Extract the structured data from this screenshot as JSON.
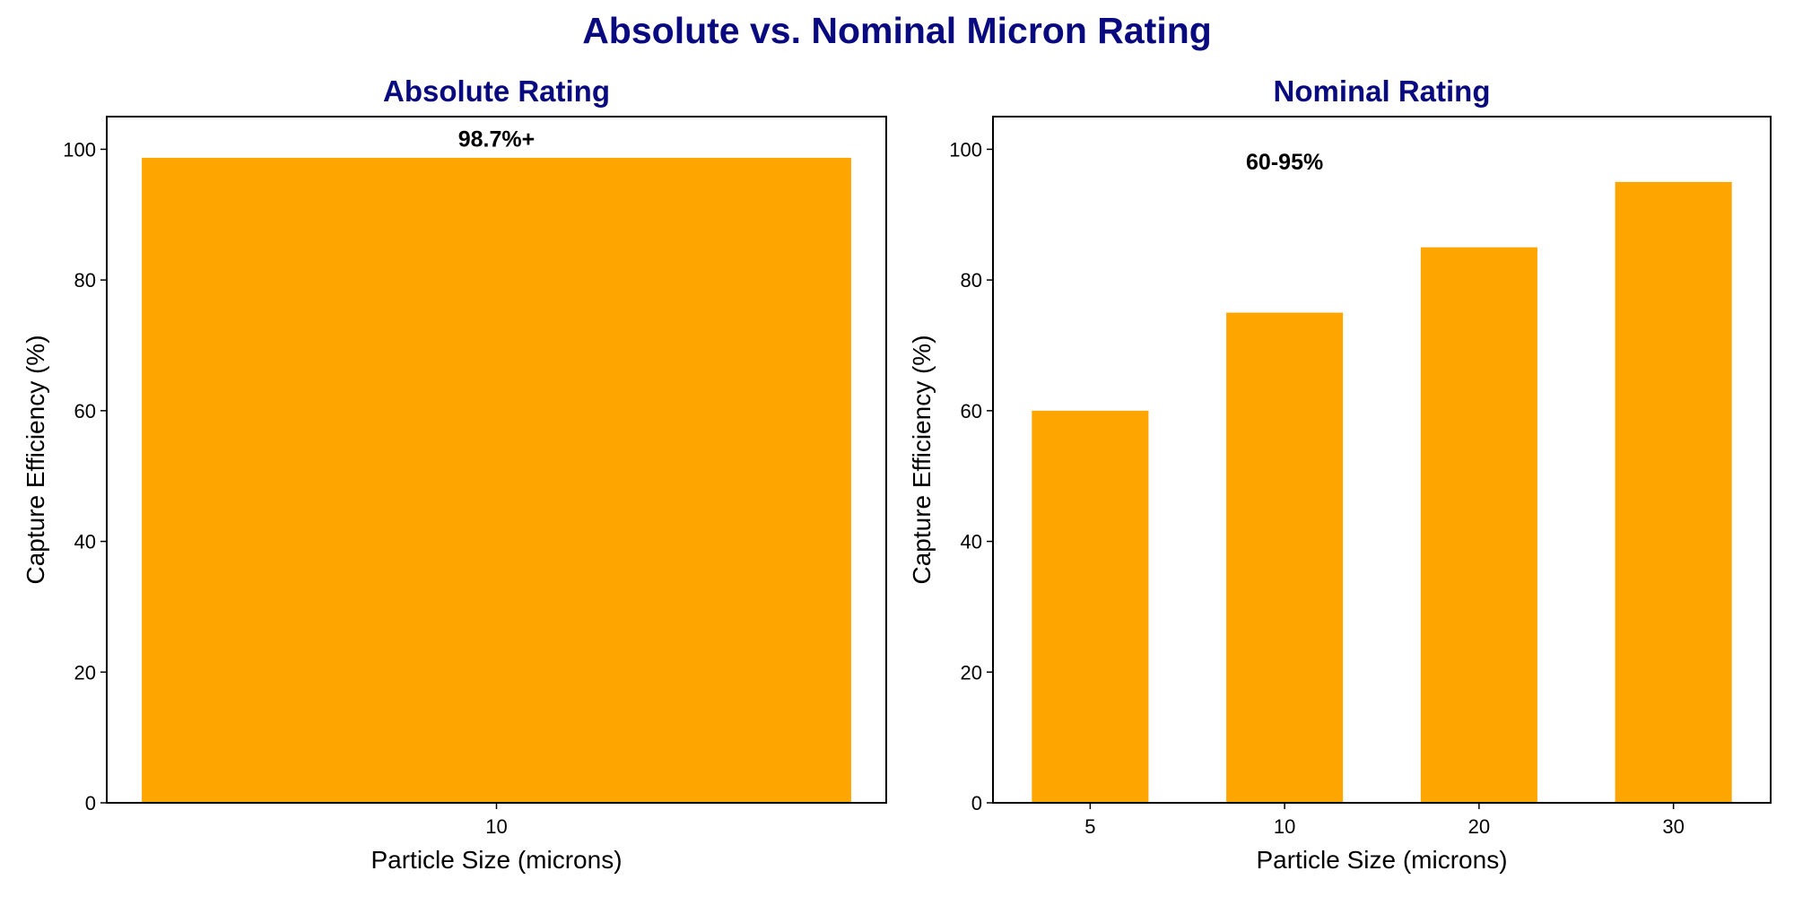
{
  "title": "Absolute vs. Nominal Micron Rating",
  "colors": {
    "title": "#0a0a80",
    "bar": "#ffa500",
    "axis": "#000000",
    "background": "#ffffff"
  },
  "chart_data": [
    {
      "type": "bar",
      "title": "Absolute Rating",
      "categories": [
        "10"
      ],
      "values": [
        98.7
      ],
      "xlabel": "Particle Size (microns)",
      "ylabel": "Capture Efficiency (%)",
      "ylim": [
        0,
        105
      ],
      "yticks": [
        0,
        20,
        40,
        60,
        80,
        100
      ],
      "grid": false,
      "annotation": {
        "text": "98.7%+",
        "x": "10",
        "y": 101.5
      }
    },
    {
      "type": "bar",
      "title": "Nominal Rating",
      "categories": [
        "5",
        "10",
        "20",
        "30"
      ],
      "values": [
        60,
        75,
        85,
        95
      ],
      "xlabel": "Particle Size (microns)",
      "ylabel": "Capture Efficiency (%)",
      "ylim": [
        0,
        105
      ],
      "yticks": [
        0,
        20,
        40,
        60,
        80,
        100
      ],
      "grid": false,
      "annotation": {
        "text": "60-95%",
        "x": "10",
        "y": 98
      }
    }
  ]
}
